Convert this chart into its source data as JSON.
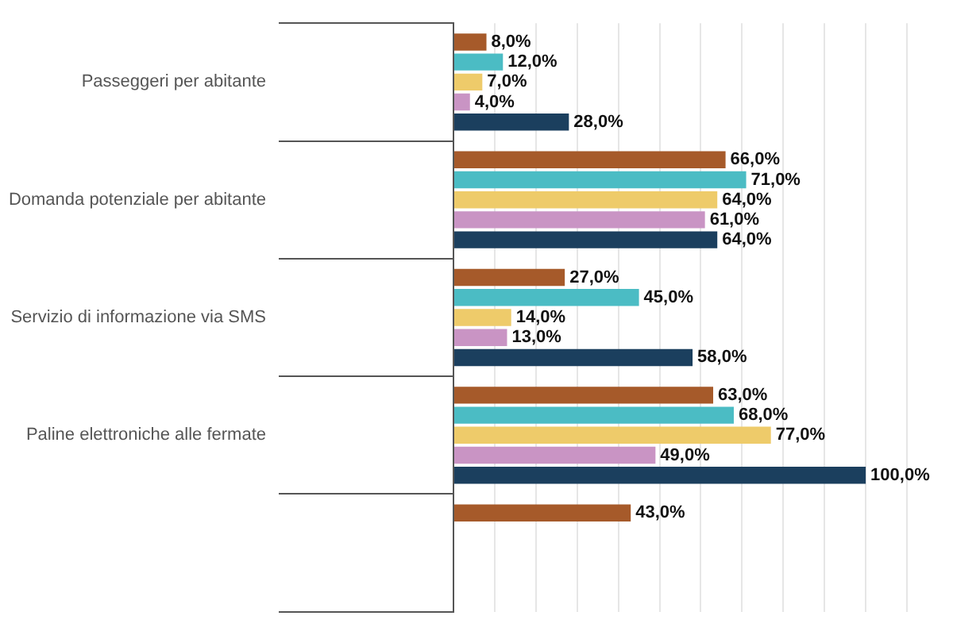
{
  "chart_data": {
    "type": "bar",
    "orientation": "horizontal",
    "categories": [
      "Passeggeri per abitante",
      "Domanda potenziale per abitante",
      "Servizio di informazione via SMS",
      "Paline elettroniche alle fermate",
      null
    ],
    "series": [
      {
        "color": "#a65a2a",
        "values": [
          8,
          66,
          27,
          63,
          43
        ],
        "value_labels": [
          "8,0%",
          "66,0%",
          "27,0%",
          "63,0%",
          "43,0%"
        ]
      },
      {
        "color": "#4bbcc4",
        "values": [
          12,
          71,
          45,
          68,
          null
        ],
        "value_labels": [
          "12,0%",
          "71,0%",
          "45,0%",
          "68,0%",
          null
        ]
      },
      {
        "color": "#eecb6a",
        "values": [
          7,
          64,
          14,
          77,
          null
        ],
        "value_labels": [
          "7,0%",
          "64,0%",
          "14,0%",
          "77,0%",
          null
        ]
      },
      {
        "color": "#c994c4",
        "values": [
          4,
          61,
          13,
          49,
          null
        ],
        "value_labels": [
          "4,0%",
          "61,0%",
          "13,0%",
          "49,0%",
          null
        ]
      },
      {
        "color": "#1b3f5e",
        "values": [
          28,
          64,
          58,
          100,
          null
        ],
        "value_labels": [
          "28,0%",
          "64,0%",
          "58,0%",
          "100,0%",
          null
        ]
      }
    ],
    "xlim": [
      0,
      110
    ],
    "xticks": [
      {
        "value": 0,
        "label": null
      },
      {
        "value": 10,
        "label": null
      },
      {
        "value": 20,
        "label": null
      },
      {
        "value": 30,
        "label": null
      },
      {
        "value": 40,
        "label": null
      },
      {
        "value": 50,
        "label": null
      },
      {
        "value": 60,
        "label": null
      },
      {
        "value": 70,
        "label": null
      },
      {
        "value": 80,
        "label": null
      },
      {
        "value": 90,
        "label": null
      },
      {
        "value": 100,
        "label": null
      },
      {
        "value": 110,
        "label": null
      }
    ],
    "grid": "x",
    "tick_labels": "y",
    "legend": false
  }
}
